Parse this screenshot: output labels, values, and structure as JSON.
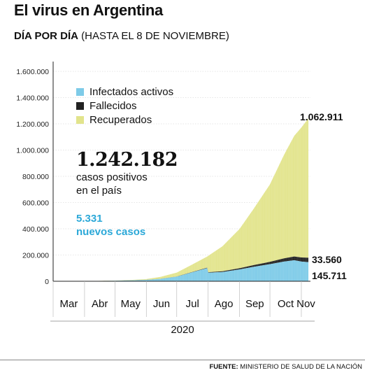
{
  "title": "El virus en Argentina",
  "subtitle_bold": "DÍA POR DÍA",
  "subtitle_rest": " (HASTA EL 8 DE NOVIEMBRE)",
  "footer_bold": "FUENTE:",
  "footer_rest": " MINISTERIO DE SALUD DE LA NACIÓN",
  "stats": {
    "total_value": "1.242.182",
    "total_line1": "casos positivos",
    "total_line2": "en el país",
    "new_value": "5.331",
    "new_label": "nuevos casos"
  },
  "colors": {
    "activos": "#7ecbe8",
    "fallecidos": "#222222",
    "recuperados": "#e2e48c",
    "accent": "#2ba8d8"
  },
  "chart_data": {
    "type": "area",
    "stacked": true,
    "ylim": [
      0,
      1600000
    ],
    "yticks": [
      "0",
      "200.000",
      "400.000",
      "600.000",
      "800.000",
      "1.000.000",
      "1.200.000",
      "1.400.000",
      "1.600.000"
    ],
    "ytick_values": [
      0,
      200000,
      400000,
      600000,
      800000,
      1000000,
      1200000,
      1400000,
      1600000
    ],
    "months": [
      "Mar",
      "Abr",
      "May",
      "Jun",
      "Jul",
      "Ago",
      "Sep",
      "Oct",
      "Nov"
    ],
    "xlabel": "2020",
    "legend": [
      "Infectados activos",
      "Fallecidos",
      "Recuperados"
    ],
    "legend_position": "top-left",
    "x": [
      "2020-03-03",
      "2020-04-01",
      "2020-05-01",
      "2020-05-15",
      "2020-06-01",
      "2020-06-15",
      "2020-07-01",
      "2020-07-15",
      "2020-07-31",
      "2020-08-01",
      "2020-08-15",
      "2020-09-01",
      "2020-09-15",
      "2020-10-01",
      "2020-10-15",
      "2020-10-25",
      "2020-11-01",
      "2020-11-08"
    ],
    "series": [
      {
        "name": "Infectados activos",
        "values": [
          0,
          800,
          3500,
          6000,
          10000,
          18000,
          35000,
          65000,
          100000,
          65000,
          70000,
          90000,
          110000,
          130000,
          150000,
          160000,
          150000,
          145711
        ]
      },
      {
        "name": "Fallecidos",
        "values": [
          0,
          30,
          300,
          450,
          600,
          900,
          1300,
          2200,
          3500,
          3600,
          6000,
          9000,
          13000,
          18000,
          25000,
          29000,
          31500,
          33560
        ]
      },
      {
        "name": "Recuperados",
        "values": [
          0,
          300,
          1500,
          3000,
          6000,
          14000,
          30000,
          55000,
          85000,
          125000,
          190000,
          300000,
          430000,
          590000,
          790000,
          920000,
          990000,
          1062911
        ]
      }
    ],
    "end_labels": [
      "1.062.911",
      "33.560",
      "145.711"
    ]
  }
}
